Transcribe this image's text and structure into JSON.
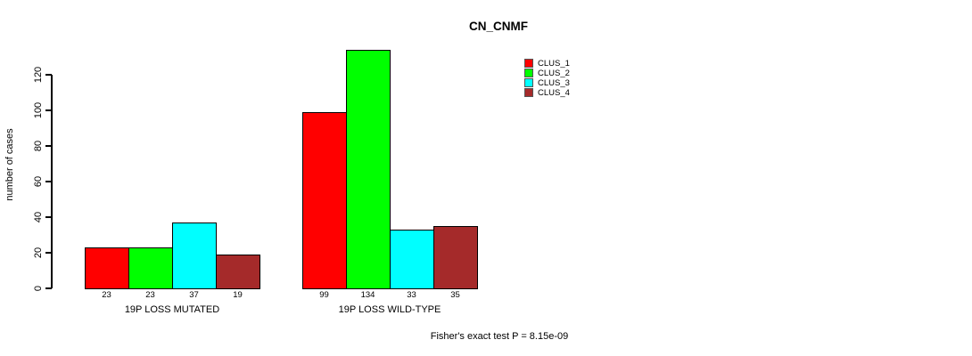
{
  "chart_data": {
    "type": "bar",
    "title": "CN_CNMF",
    "xlabel": "",
    "ylabel": "number of cases",
    "categories": [
      "19P LOSS MUTATED",
      "19P LOSS WILD-TYPE"
    ],
    "series": [
      {
        "name": "CLUS_1",
        "color": "#FF0000",
        "values": [
          23,
          99
        ]
      },
      {
        "name": "CLUS_2",
        "color": "#00FF00",
        "values": [
          23,
          134
        ]
      },
      {
        "name": "CLUS_3",
        "color": "#00FFFF",
        "values": [
          37,
          33
        ]
      },
      {
        "name": "CLUS_4",
        "color": "#A52A2A",
        "values": [
          19,
          35
        ]
      }
    ],
    "bar_value_labels": [
      [
        "23",
        "23",
        "37",
        "19"
      ],
      [
        "99",
        "134",
        "33",
        "35"
      ]
    ],
    "yticks": [
      0,
      20,
      40,
      60,
      80,
      100,
      120
    ],
    "ylim": [
      0,
      120
    ],
    "grid": false,
    "legend_position": "top-right",
    "annotation": "Fisher's exact test P = 8.15e-09"
  },
  "colors": {
    "background": "#ffffff",
    "axis": "#000000",
    "text": "#000000"
  }
}
